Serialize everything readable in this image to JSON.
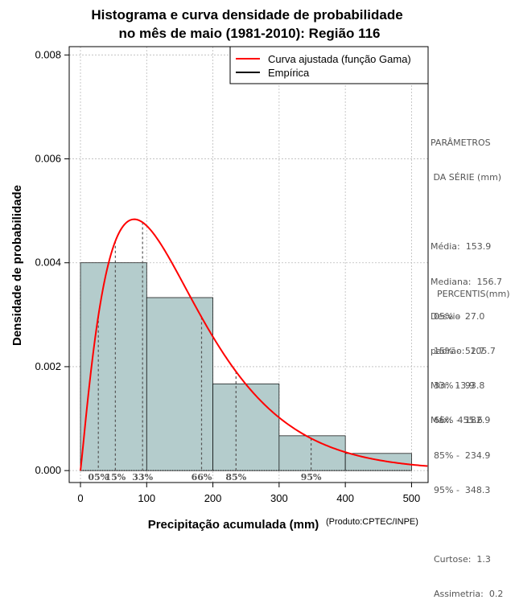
{
  "chart_data": {
    "type": "bar",
    "title": [
      "Histograma e curva densidade de probabilidade",
      "no mês de maio (1981-2010): Região 116"
    ],
    "xlabel": "Precipitação acumulada (mm)",
    "ylabel": "Densidade de probabilidade",
    "credit": "(Produto:CPTEC/INPE)",
    "xlim": [
      -17,
      525
    ],
    "ylim": [
      -0.00023,
      0.00816
    ],
    "x_ticks": [
      0,
      100,
      200,
      300,
      400,
      500
    ],
    "y_ticks": [
      0.0,
      0.002,
      0.004,
      0.006,
      0.008
    ],
    "x_tick_labels": [
      "0",
      "100",
      "200",
      "300",
      "400",
      "500"
    ],
    "y_tick_labels": [
      "0.000",
      "0.002",
      "0.004",
      "0.006",
      "0.008"
    ],
    "grid": true,
    "bins": [
      {
        "x0": 0,
        "x1": 100,
        "density": 0.004
      },
      {
        "x0": 100,
        "x1": 200,
        "density": 0.00333
      },
      {
        "x0": 200,
        "x1": 300,
        "density": 0.00167
      },
      {
        "x0": 300,
        "x1": 400,
        "density": 0.00067
      },
      {
        "x0": 400,
        "x1": 500,
        "density": 0.00033
      }
    ],
    "bar_color": "#b4cccc",
    "curve": {
      "name": "Curva ajustada (função Gama)",
      "color": "#ff0000",
      "distribution": "gamma",
      "shape": 2.12,
      "rate": 0.0138
    },
    "empirical": {
      "name": "Empírica",
      "color": "#000000"
    },
    "legend_position": "top-right",
    "percentile_markers": [
      {
        "label": "05%",
        "x": 27.0
      },
      {
        "label": "15%",
        "x": 52.7
      },
      {
        "label": "33%",
        "x": 93.8
      },
      {
        "label": "66%",
        "x": 182.9
      },
      {
        "label": "85%",
        "x": 234.9
      },
      {
        "label": "95%",
        "x": 348.3
      }
    ]
  },
  "side_panel": {
    "params_title_1": "PARÂMETROS",
    "params_title_2": " DA SÉRIE (mm)",
    "media": "Média:  153.9",
    "mediana": "Mediana:  156.7",
    "desvio_1": "Desvio",
    "desvio_2": "padrão:  105.7",
    "min": "Mín:  13.9",
    "max": "Máx:  455.6",
    "percentis_title": "PERCENTIS(mm)",
    "p05": "05% -  27.0",
    "p15": "15% -  52.7",
    "p33": "33% -  93.8",
    "p66": "66% -  182.9",
    "p85": "85% -  234.9",
    "p95": "95% -  348.3",
    "curtose": "Curtose:  1.3",
    "assimetria": "Assimetria:  0.2"
  }
}
